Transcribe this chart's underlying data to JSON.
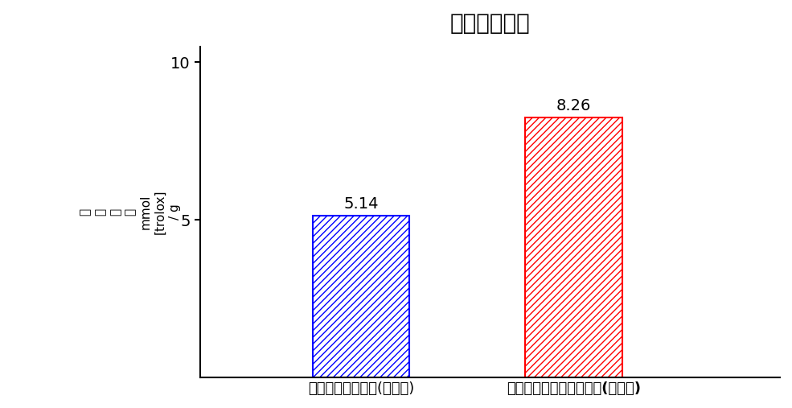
{
  "title": "抗酸化活性度",
  "categories": [
    "海岸松樹皮抜出物(固形分)",
    "シベリアカラマツエキス(固形分)"
  ],
  "values": [
    5.14,
    8.26
  ],
  "bar_colors": [
    "#0000ff",
    "#ff0000"
  ],
  "ylabel_lines": [
    "抗",
    "酸",
    "化",
    "度",
    "mmol",
    "[trolox]",
    "/ g"
  ],
  "ylim": [
    0,
    10.5
  ],
  "yticks": [
    5,
    10
  ],
  "title_fontsize": 20,
  "tick_fontsize": 14,
  "label_fontsize": 13,
  "value_fontsize": 14,
  "ylabel_fontsize": 11,
  "background_color": "#ffffff",
  "hatch_pattern": "////",
  "bar_width": 0.15,
  "bar_positions": [
    0.35,
    0.68
  ]
}
